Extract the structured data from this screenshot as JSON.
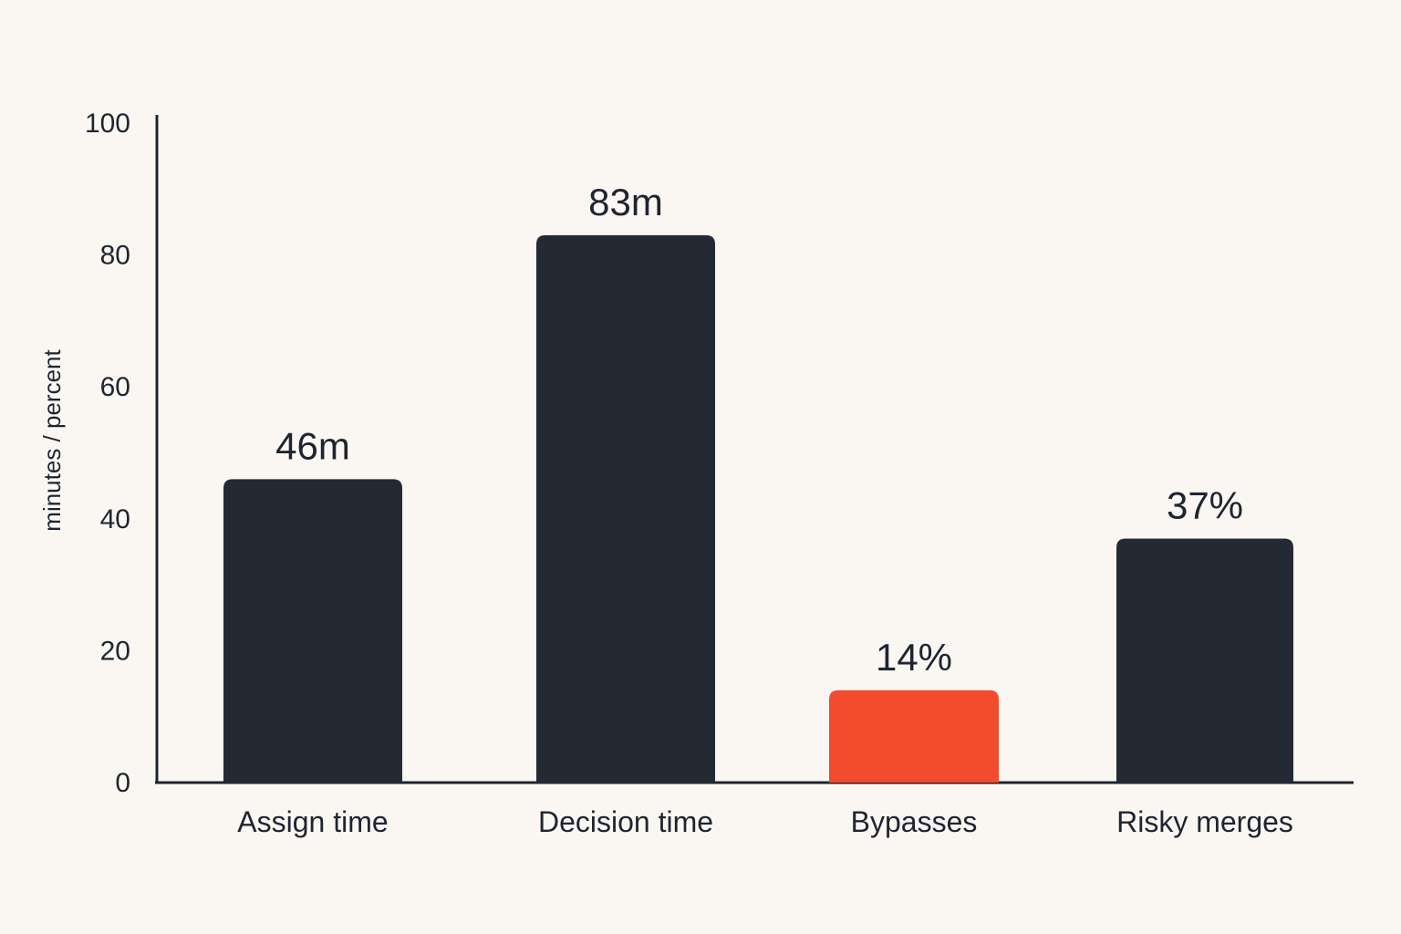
{
  "chart_data": {
    "type": "bar",
    "title": "",
    "xlabel": "",
    "ylabel": "minutes / percent",
    "ylim": [
      0,
      100
    ],
    "yticks": [
      0,
      20,
      40,
      60,
      80,
      100
    ],
    "grid": false,
    "categories": [
      "Assign time",
      "Decision time",
      "Bypasses",
      "Risky merges"
    ],
    "values": [
      46,
      83,
      14,
      37
    ],
    "value_labels": [
      "46m",
      "83m",
      "14%",
      "37%"
    ],
    "bar_colors": [
      "#232a33",
      "#232a33",
      "#f24b2d",
      "#232a33"
    ],
    "axis_color": "#1e2530",
    "background": "#faf7f2"
  }
}
